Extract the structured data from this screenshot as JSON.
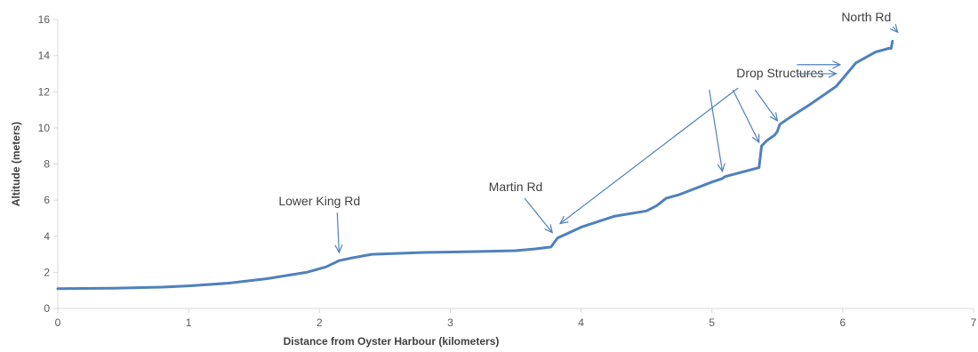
{
  "chart_data": {
    "type": "line",
    "xlabel": "Distance from Oyster Harbour (kilometers)",
    "ylabel": "Altitude (meters)",
    "xlim": [
      0,
      7
    ],
    "ylim": [
      0,
      16
    ],
    "xticks": [
      0,
      1,
      2,
      3,
      4,
      5,
      6,
      7
    ],
    "yticks": [
      0,
      2,
      4,
      6,
      8,
      10,
      12,
      14,
      16
    ],
    "grid": false,
    "legend": "none",
    "series": [
      {
        "color": "#4f81bd",
        "x": [
          0,
          0.4,
          0.8,
          1.0,
          1.3,
          1.6,
          1.9,
          2.05,
          2.15,
          2.25,
          2.4,
          2.8,
          3.2,
          3.5,
          3.65,
          3.77,
          3.82,
          4.0,
          4.25,
          4.5,
          4.58,
          4.65,
          4.75,
          5.0,
          5.08,
          5.1,
          5.36,
          5.38,
          5.42,
          5.48,
          5.5,
          5.52,
          5.6,
          5.75,
          5.95,
          6.02,
          6.1,
          6.25,
          6.35,
          6.37,
          6.38
        ],
        "y": [
          1.1,
          1.12,
          1.18,
          1.25,
          1.4,
          1.65,
          2.0,
          2.3,
          2.65,
          2.8,
          3.0,
          3.1,
          3.15,
          3.2,
          3.3,
          3.4,
          3.9,
          4.5,
          5.1,
          5.4,
          5.7,
          6.1,
          6.3,
          7.0,
          7.2,
          7.3,
          7.8,
          9.0,
          9.3,
          9.6,
          9.8,
          10.2,
          10.6,
          11.3,
          12.3,
          12.9,
          13.6,
          14.2,
          14.4,
          14.4,
          14.8
        ]
      }
    ],
    "annotations": [
      {
        "text": "Lower King Rd",
        "label_at": [
          2.0,
          5.7
        ],
        "targets": [
          [
            2.15,
            3.1
          ]
        ]
      },
      {
        "text": "Martin Rd",
        "label_at": [
          3.5,
          6.5
        ],
        "targets": [
          [
            3.78,
            4.2
          ]
        ]
      },
      {
        "text": "Drop Structures",
        "label_at": [
          5.52,
          12.8
        ],
        "targets": [
          [
            3.84,
            4.7
          ],
          [
            5.08,
            7.6
          ],
          [
            5.36,
            9.2
          ],
          [
            5.5,
            10.4
          ],
          [
            5.95,
            13.0
          ],
          [
            5.98,
            13.5
          ]
        ]
      },
      {
        "text": "North Rd",
        "label_at": [
          6.18,
          15.9
        ],
        "targets": [
          [
            6.42,
            15.3
          ]
        ]
      }
    ]
  }
}
